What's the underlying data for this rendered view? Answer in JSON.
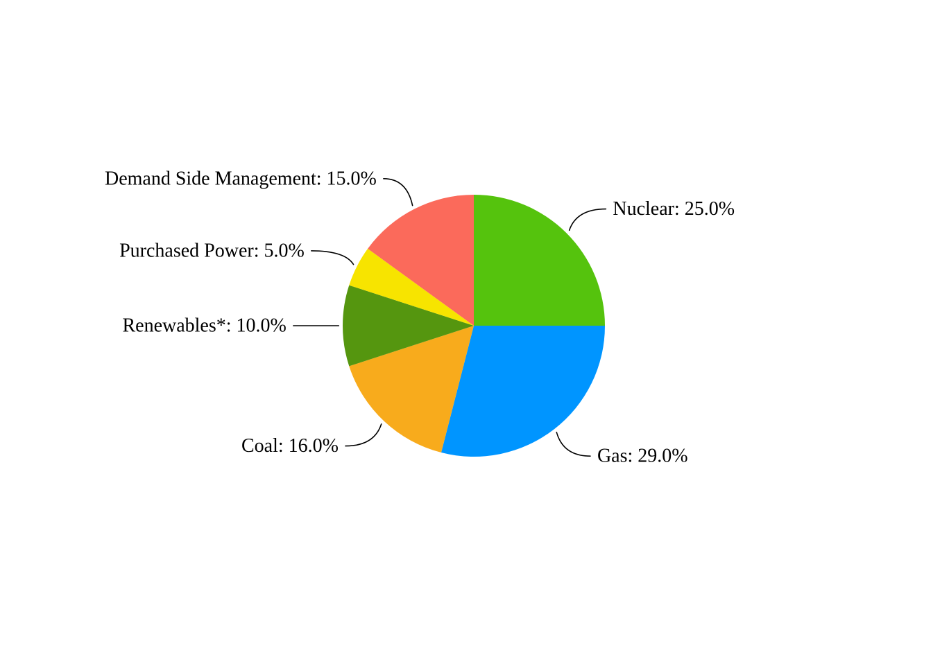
{
  "page": {
    "background_color": "#ffffff"
  },
  "chart_data": {
    "type": "pie",
    "title": "",
    "start_angle": "top (12 o'clock)",
    "direction": "clockwise",
    "legend_position": "none",
    "label_format": "{label}: {value}%",
    "text_color": "#000000",
    "leader_line_color": "#000000",
    "slices": [
      {
        "label": "Nuclear",
        "value": 25.0,
        "display": "Nuclear: 25.0%",
        "color": "#55C30D"
      },
      {
        "label": "Gas",
        "value": 29.0,
        "display": "Gas: 29.0%",
        "color": "#0095FF"
      },
      {
        "label": "Coal",
        "value": 16.0,
        "display": "Coal: 16.0%",
        "color": "#F8AB1C"
      },
      {
        "label": "Renewables*",
        "value": 10.0,
        "display": "Renewables*: 10.0%",
        "color": "#55960F"
      },
      {
        "label": "Purchased Power",
        "value": 5.0,
        "display": "Purchased Power: 5.0%",
        "color": "#F7E400"
      },
      {
        "label": "Demand Side Management",
        "value": 15.0,
        "display": "Demand Side Management: 15.0%",
        "color": "#FB6A5B"
      }
    ]
  }
}
